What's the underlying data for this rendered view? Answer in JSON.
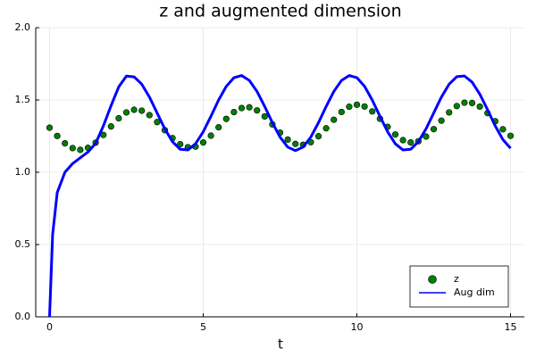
{
  "chart_data": {
    "type": "line",
    "title": "z and augmented dimension",
    "x_label": "t",
    "xlim": [
      -0.45,
      15.45
    ],
    "xticks": [
      0,
      5,
      10,
      15
    ],
    "ylim": [
      0,
      2
    ],
    "yticks": [
      {
        "value": 0,
        "label": "0.0"
      },
      0.5,
      {
        "value": 1,
        "label": "1.0"
      },
      1.5,
      {
        "value": 2,
        "label": "2.0"
      }
    ],
    "grid": true,
    "legend": "bottom-right",
    "series": [
      {
        "name": "z",
        "style": "scatter",
        "color": "#008000",
        "x": [
          0,
          0.25,
          0.5,
          0.75,
          1,
          1.25,
          1.5,
          1.75,
          2,
          2.25,
          2.5,
          2.75,
          3,
          3.25,
          3.5,
          3.75,
          4,
          4.25,
          4.5,
          4.75,
          5,
          5.25,
          5.5,
          5.75,
          6,
          6.25,
          6.5,
          6.75,
          7,
          7.25,
          7.5,
          7.75,
          8,
          8.25,
          8.5,
          8.75,
          9,
          9.25,
          9.5,
          9.75,
          10,
          10.25,
          10.5,
          10.75,
          11,
          11.25,
          11.5,
          11.75,
          12,
          12.25,
          12.5,
          12.75,
          13,
          13.25,
          13.5,
          13.75,
          14,
          14.25,
          14.5,
          14.75,
          15
        ],
        "values": [
          1.308,
          1.251,
          1.2,
          1.167,
          1.155,
          1.169,
          1.205,
          1.258,
          1.317,
          1.373,
          1.414,
          1.432,
          1.426,
          1.395,
          1.347,
          1.291,
          1.236,
          1.194,
          1.173,
          1.177,
          1.206,
          1.253,
          1.311,
          1.369,
          1.416,
          1.444,
          1.449,
          1.428,
          1.386,
          1.331,
          1.274,
          1.226,
          1.196,
          1.19,
          1.208,
          1.249,
          1.304,
          1.363,
          1.417,
          1.453,
          1.467,
          1.455,
          1.421,
          1.37,
          1.314,
          1.261,
          1.222,
          1.206,
          1.214,
          1.247,
          1.298,
          1.357,
          1.414,
          1.458,
          1.481,
          1.479,
          1.454,
          1.409,
          1.353,
          1.297,
          1.252
        ]
      },
      {
        "name": "Aug dim",
        "style": "line",
        "color": "#0000ff",
        "x": [
          0,
          0.1,
          0.25,
          0.5,
          0.75,
          1,
          1.25,
          1.5,
          1.75,
          2,
          2.25,
          2.5,
          2.75,
          3,
          3.25,
          3.5,
          3.75,
          4,
          4.25,
          4.5,
          4.75,
          5,
          5.25,
          5.5,
          5.75,
          6,
          6.25,
          6.5,
          6.75,
          7,
          7.25,
          7.5,
          7.75,
          8,
          8.25,
          8.5,
          8.75,
          9,
          9.25,
          9.5,
          9.75,
          10,
          10.25,
          10.5,
          10.75,
          11,
          11.25,
          11.5,
          11.75,
          12,
          12.25,
          12.5,
          12.75,
          13,
          13.25,
          13.5,
          13.75,
          14,
          14.25,
          14.5,
          14.75,
          15
        ],
        "values": [
          0,
          0.57,
          0.86,
          1.0,
          1.06,
          1.1,
          1.14,
          1.2,
          1.32,
          1.46,
          1.59,
          1.665,
          1.66,
          1.609,
          1.52,
          1.41,
          1.3,
          1.211,
          1.159,
          1.154,
          1.197,
          1.28,
          1.387,
          1.499,
          1.594,
          1.654,
          1.669,
          1.635,
          1.559,
          1.455,
          1.343,
          1.243,
          1.174,
          1.15,
          1.174,
          1.243,
          1.343,
          1.455,
          1.559,
          1.635,
          1.669,
          1.654,
          1.594,
          1.499,
          1.387,
          1.28,
          1.197,
          1.154,
          1.159,
          1.211,
          1.3,
          1.41,
          1.52,
          1.609,
          1.661,
          1.666,
          1.623,
          1.54,
          1.433,
          1.321,
          1.226,
          1.166
        ]
      }
    ]
  }
}
